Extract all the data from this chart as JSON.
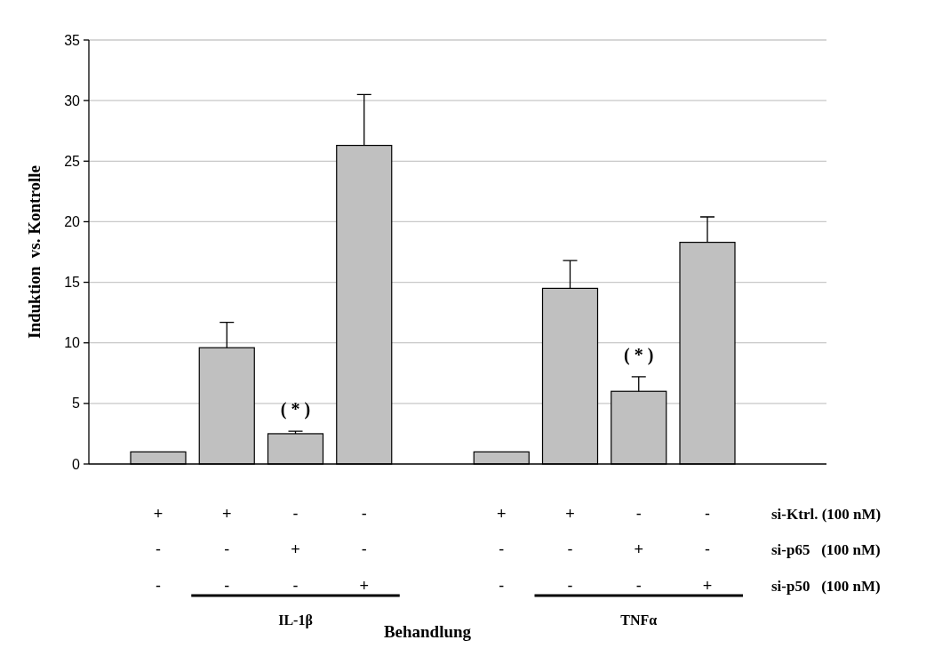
{
  "chart_data": {
    "type": "bar",
    "ylabel": "Induktion  vs. Kontrolle",
    "xlabel": "Behandlung",
    "categories": [
      "+\n-\n-",
      "+\n-\n-",
      "-\n+\n-",
      "-\n-\n+",
      null,
      "+\n-\n-",
      "+\n-\n-",
      "-\n+\n-",
      "-\n-\n+"
    ],
    "values": [
      1.0,
      9.6,
      2.5,
      26.3,
      null,
      1.0,
      14.5,
      6.0,
      18.3
    ],
    "errors": [
      null,
      [
        9.6,
        11.7
      ],
      [
        2.5,
        2.7
      ],
      [
        26.3,
        30.5
      ],
      null,
      null,
      [
        14.5,
        16.8
      ],
      [
        6.0,
        7.2
      ],
      [
        18.3,
        20.4
      ]
    ],
    "color": "#c0c0c0",
    "ylim": [
      0,
      35
    ],
    "yticks": [
      0,
      5,
      10,
      15,
      20,
      25,
      30,
      35
    ],
    "grid": "y",
    "annotations": [
      "si-Ktrl. (100 nM)",
      "si-p65   (100 nM)",
      "si-p50   (100 nM)",
      "IL-1β",
      "TNFα",
      "( * )",
      "( * )"
    ]
  }
}
